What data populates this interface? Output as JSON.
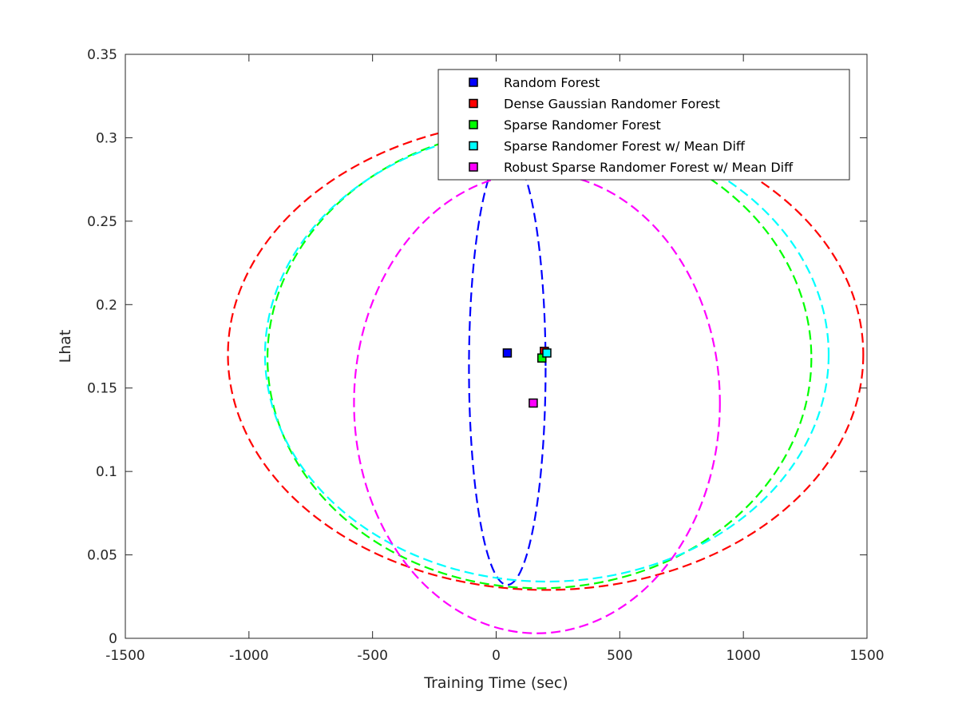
{
  "chart_data": {
    "type": "scatter",
    "xlabel": "Training Time (sec)",
    "ylabel": "Lhat",
    "xlim": [
      -1500,
      1500
    ],
    "ylim": [
      0,
      0.35
    ],
    "xticks": [
      -1500,
      -1000,
      -500,
      0,
      500,
      1000,
      1500
    ],
    "xtick_labels": [
      "-1500",
      "-1000",
      "-500",
      "0",
      "500",
      "1000",
      "1500"
    ],
    "yticks": [
      0,
      0.05,
      0.1,
      0.15,
      0.2,
      0.25,
      0.3,
      0.35
    ],
    "ytick_labels": [
      "0",
      "0.05",
      "0.1",
      "0.15",
      "0.2",
      "0.25",
      "0.3",
      "0.35"
    ],
    "grid": false,
    "legend_position": "top-right",
    "series": [
      {
        "name": "Random Forest",
        "color": "#0000ff",
        "point": {
          "x": 45,
          "y": 0.171
        },
        "ellipse": {
          "cx": 45,
          "cy": 0.162,
          "rx": 155,
          "ry": 0.13
        }
      },
      {
        "name": "Dense Gaussian Randomer Forest",
        "color": "#ff0000",
        "point": {
          "x": 195,
          "y": 0.172
        },
        "ellipse": {
          "cx": 200,
          "cy": 0.17,
          "rx": 1285,
          "ry": 0.141
        }
      },
      {
        "name": "Sparse Randomer Forest",
        "color": "#00ff00",
        "point": {
          "x": 185,
          "y": 0.168
        },
        "ellipse": {
          "cx": 175,
          "cy": 0.168,
          "rx": 1100,
          "ry": 0.138
        }
      },
      {
        "name": "Sparse Randomer Forest w/ Mean Diff",
        "color": "#00ffff",
        "point": {
          "x": 205,
          "y": 0.171
        },
        "ellipse": {
          "cx": 205,
          "cy": 0.17,
          "rx": 1140,
          "ry": 0.136
        }
      },
      {
        "name": "Robust Sparse Randomer Forest w/ Mean Diff",
        "color": "#ff00ff",
        "point": {
          "x": 150,
          "y": 0.141
        },
        "ellipse": {
          "cx": 165,
          "cy": 0.141,
          "rx": 740,
          "ry": 0.138
        }
      }
    ]
  }
}
